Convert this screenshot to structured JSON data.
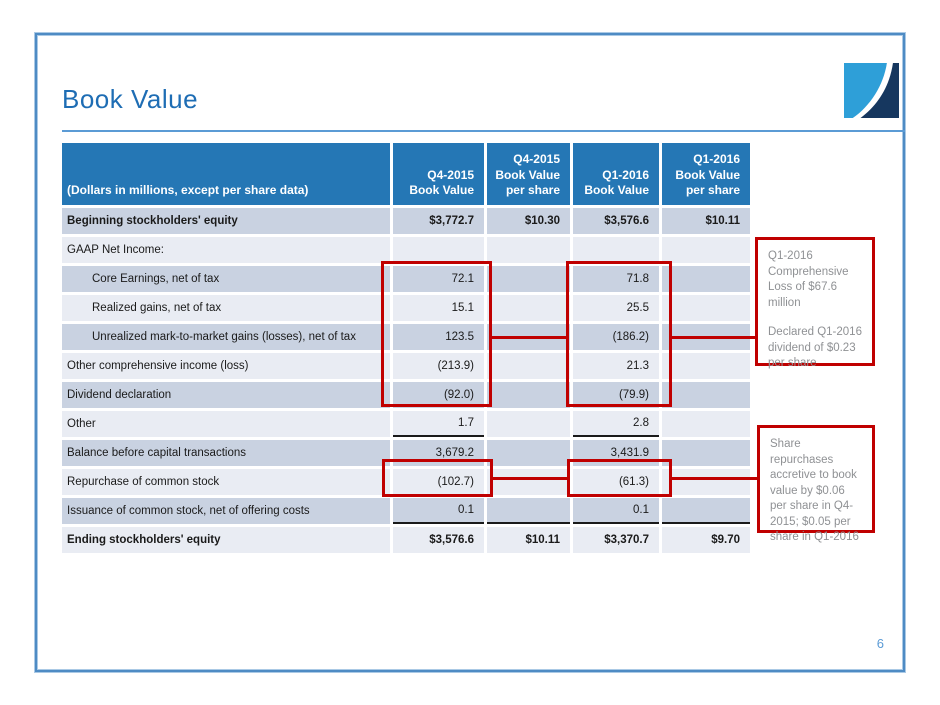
{
  "slide": {
    "title": "Book Value",
    "page_number": "6"
  },
  "table": {
    "header": {
      "label": "(Dollars in millions, except per share data)",
      "columns": [
        "Q4-2015\nBook Value",
        "Q4-2015\nBook Value\nper share",
        "Q1-2016\nBook Value",
        "Q1-2016\nBook Value\nper share"
      ]
    },
    "rows": [
      {
        "label": "Beginning stockholders' equity",
        "values": [
          "$3,772.7",
          "$10.30",
          "$3,576.6",
          "$10.11"
        ],
        "bold": true,
        "indent": false,
        "underline": "none"
      },
      {
        "label": "GAAP Net Income:",
        "values": [
          "",
          "",
          "",
          ""
        ],
        "bold": false,
        "indent": false,
        "underline": "none"
      },
      {
        "label": "Core Earnings, net of tax",
        "values": [
          "72.1",
          "",
          "71.8",
          ""
        ],
        "bold": false,
        "indent": true,
        "underline": "none"
      },
      {
        "label": "Realized gains, net of tax",
        "values": [
          "15.1",
          "",
          "25.5",
          ""
        ],
        "bold": false,
        "indent": true,
        "underline": "none"
      },
      {
        "label": "Unrealized mark-to-market gains (losses), net of tax",
        "values": [
          "123.5",
          "",
          "(186.2)",
          ""
        ],
        "bold": false,
        "indent": true,
        "underline": "none"
      },
      {
        "label": "Other comprehensive income (loss)",
        "values": [
          "(213.9)",
          "",
          "21.3",
          ""
        ],
        "bold": false,
        "indent": false,
        "underline": "none"
      },
      {
        "label": "Dividend declaration",
        "values": [
          "(92.0)",
          "",
          "(79.9)",
          ""
        ],
        "bold": false,
        "indent": false,
        "underline": "none"
      },
      {
        "label": "Other",
        "values": [
          "1.7",
          "",
          "2.8",
          ""
        ],
        "bold": false,
        "indent": false,
        "underline": "bv"
      },
      {
        "label": "Balance before capital transactions",
        "values": [
          "3,679.2",
          "",
          "3,431.9",
          ""
        ],
        "bold": false,
        "indent": false,
        "underline": "none"
      },
      {
        "label": "Repurchase of common stock",
        "values": [
          "(102.7)",
          "",
          "(61.3)",
          ""
        ],
        "bold": false,
        "indent": false,
        "underline": "none"
      },
      {
        "label": "Issuance of common stock, net of offering costs",
        "values": [
          "0.1",
          "",
          "0.1",
          ""
        ],
        "bold": false,
        "indent": false,
        "underline": "all"
      },
      {
        "label": "Ending stockholders' equity",
        "values": [
          "$3,576.6",
          "$10.11",
          "$3,370.7",
          "$9.70"
        ],
        "bold": true,
        "indent": false,
        "underline": "none"
      }
    ]
  },
  "annotations": {
    "box1": {
      "paragraphs": [
        "Q1-2016 Comprehensive Loss of $67.6 million",
        "Declared Q1-2016 dividend of $0.23 per share"
      ]
    },
    "box2": {
      "paragraphs": [
        "Share repurchases accretive to book value by $0.06 per share in Q4-2015; $0.05 per share in Q1-2016"
      ]
    }
  },
  "colors": {
    "header_bg": "#2577b5",
    "row_dark": "#c9d2e1",
    "row_light": "#e9ecf3",
    "highlight_red": "#c00000",
    "title_blue": "#1e6db4",
    "frame_blue": "#4e8bc4",
    "annotation_text_gray": "#8f9194",
    "logo_light_blue": "#2e9fd8",
    "logo_navy": "#16375f",
    "page_number_blue": "#5b9bd5"
  }
}
